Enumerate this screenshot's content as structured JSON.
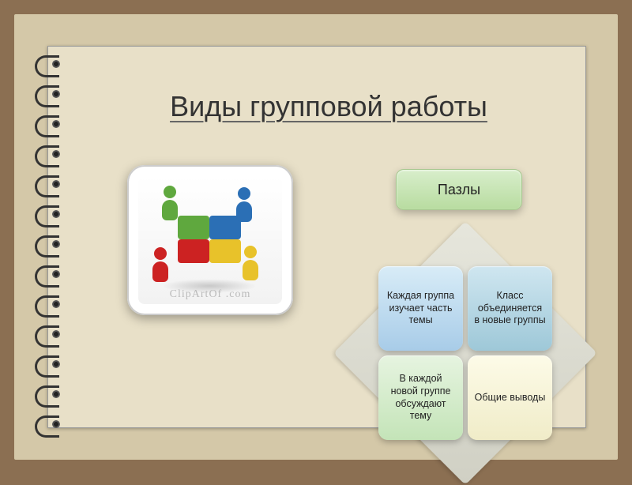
{
  "colors": {
    "outer_border": "#8b6f52",
    "mat": "#d4c8a8",
    "paper": "#e8e0c8",
    "title_text": "#333333"
  },
  "title": "Виды групповой работы",
  "image_card": {
    "watermark": "ClipArtOf .com",
    "people_colors": [
      "#5fa83e",
      "#2b6fb5",
      "#c22222",
      "#e8c22a"
    ]
  },
  "label": {
    "text": "Пазлы",
    "bg_gradient": [
      "#d8eecb",
      "#b8dca0"
    ],
    "font_size": 18
  },
  "quad": {
    "diamond_bg": [
      "#e6e6dc",
      "#d0d0c4"
    ],
    "cards": [
      {
        "text": "Каждая группа изучает часть темы",
        "gradient": [
          "#d8ecf7",
          "#a8cce8"
        ]
      },
      {
        "text": "Класс объединяется в новые группы",
        "gradient": [
          "#cfe6f0",
          "#9ec8d8"
        ]
      },
      {
        "text": "В каждой новой группе обсуждают тему",
        "gradient": [
          "#e6f4e0",
          "#c4e4b8"
        ]
      },
      {
        "text": "Общие выводы",
        "gradient": [
          "#fdfbe8",
          "#f0ecc8"
        ]
      }
    ],
    "font_size": 12.5
  },
  "binding": {
    "ring_count": 13
  }
}
